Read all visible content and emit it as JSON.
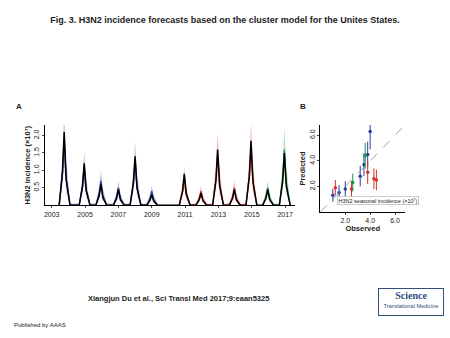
{
  "title": "Fig. 3. H3N2 incidence forecasts based on the cluster model for the Unites States.",
  "citation": "Xiangjun Du et al., Sci Transl Med 2017;9:eaan5325",
  "publisher": "Published by AAAS",
  "logo": {
    "line1": "Science",
    "line2": "Translational Medicine"
  },
  "chart_data": [
    {
      "panel": "A",
      "type": "line",
      "y_label": "H3N2 incidence (×10⁷)",
      "grid": false,
      "xlim": [
        2002.6,
        2017.6
      ],
      "xticks": [
        2003,
        2005,
        2007,
        2009,
        2011,
        2013,
        2015,
        2017
      ],
      "ylim": [
        0,
        2.3
      ],
      "yticks": [
        0.5,
        {
          "value": 1,
          "label": "1.0"
        },
        1.5,
        {
          "value": 2,
          "label": "2.0"
        }
      ],
      "series": [
        {
          "color": "#000000",
          "x": [
            2003.45,
            2003.65,
            2003.75,
            2003.87,
            2004.1,
            2004.65,
            2004.85,
            2004.95,
            2005.07,
            2005.3,
            2005.65,
            2005.85,
            2005.95,
            2006.07,
            2006.3,
            2006.7,
            2006.9,
            2007.0,
            2007.12,
            2007.35,
            2007.7,
            2007.9,
            2008.0,
            2008.12,
            2008.35,
            2008.7,
            2008.9,
            2009.0,
            2009.12,
            2009.35,
            2010.65,
            2010.85,
            2010.95,
            2011.07,
            2011.3,
            2011.65,
            2011.85,
            2011.95,
            2012.07,
            2012.3,
            2012.65,
            2012.85,
            2012.95,
            2013.07,
            2013.3,
            2013.65,
            2013.85,
            2013.95,
            2014.07,
            2014.3,
            2014.65,
            2014.85,
            2014.95,
            2015.07,
            2015.3,
            2015.65,
            2015.85,
            2015.95,
            2016.07,
            2016.3,
            2016.65,
            2016.85,
            2016.95,
            2017.07,
            2017.3
          ],
          "values": [
            0,
            0.95,
            2.1,
            0.74,
            0,
            0,
            0.54,
            1.2,
            0.42,
            0,
            0,
            0.27,
            0.6,
            0.21,
            0,
            0,
            0.2,
            0.45,
            0.16,
            0,
            0,
            0.63,
            1.4,
            0.49,
            0,
            0,
            0.14,
            0.3,
            0.11,
            0,
            0,
            0.41,
            0.9,
            0.32,
            0,
            0,
            0.16,
            0.35,
            0.12,
            0,
            0,
            0.72,
            1.6,
            0.56,
            0,
            0,
            0.2,
            0.45,
            0.16,
            0,
            0,
            0.83,
            1.85,
            0.65,
            0,
            0,
            0.2,
            0.45,
            0.16,
            0,
            0,
            0.68,
            1.5,
            0.53,
            0
          ]
        },
        {
          "color": "#2b3f9e",
          "x": [
            2003.45,
            2003.65,
            2003.75,
            2003.87,
            2004.1,
            2004.65,
            2004.85,
            2004.95,
            2005.07,
            2005.3,
            2005.65,
            2005.85,
            2005.95,
            2006.07,
            2006.3,
            2006.7,
            2006.9,
            2007.0,
            2007.12,
            2007.35,
            2007.7,
            2007.9,
            2008.0,
            2008.12,
            2008.35,
            2008.7,
            2008.9,
            2009.0,
            2009.12,
            2009.35
          ],
          "values": [
            0,
            0.95,
            1.9,
            0.76,
            0,
            0,
            0.55,
            1.1,
            0.44,
            0,
            0,
            0.35,
            0.7,
            0.28,
            0,
            0,
            0.25,
            0.5,
            0.2,
            0,
            0,
            0.65,
            1.3,
            0.52,
            0,
            0,
            0.2,
            0.4,
            0.16,
            0
          ],
          "upper": [
            0.05,
            1.52,
            2.66,
            1.33,
            0.05,
            0.05,
            0.88,
            1.54,
            0.77,
            0.05,
            0.05,
            0.56,
            0.98,
            0.49,
            0.05,
            0.05,
            0.4,
            0.7,
            0.35,
            0.05,
            0.05,
            1.04,
            1.82,
            0.91,
            0.05,
            0.05,
            0.32,
            0.56,
            0.28,
            0.05
          ],
          "lower": [
            0,
            0.57,
            1.14,
            0.38,
            0,
            0,
            0.33,
            0.66,
            0.22,
            0,
            0,
            0.21,
            0.42,
            0.14,
            0,
            0,
            0.15,
            0.3,
            0.1,
            0,
            0,
            0.39,
            0.78,
            0.26,
            0,
            0,
            0.12,
            0.24,
            0.08,
            0
          ]
        },
        {
          "color": "#d7302b",
          "x": [
            2010.65,
            2010.85,
            2010.95,
            2011.07,
            2011.3,
            2011.65,
            2011.85,
            2011.95,
            2012.07,
            2012.3,
            2012.65,
            2012.85,
            2012.95,
            2013.07,
            2013.3,
            2013.65,
            2013.85,
            2013.95,
            2014.07,
            2014.3,
            2014.65,
            2014.85,
            2014.95,
            2015.07,
            2015.3
          ],
          "values": [
            0,
            0.4,
            0.8,
            0.32,
            0,
            0,
            0.2,
            0.4,
            0.16,
            0,
            0,
            0.75,
            1.5,
            0.6,
            0,
            0,
            0.25,
            0.5,
            0.2,
            0,
            0,
            0.85,
            1.7,
            0.68,
            0
          ],
          "upper": [
            0.05,
            0.64,
            1.12,
            0.56,
            0.05,
            0.05,
            0.32,
            0.56,
            0.28,
            0.05,
            0.05,
            1.2,
            2.1,
            1.05,
            0.05,
            0.05,
            0.4,
            0.7,
            0.35,
            0.05,
            0.05,
            1.36,
            2.38,
            1.19,
            0.05
          ],
          "lower": [
            0,
            0.24,
            0.48,
            0.16,
            0,
            0,
            0.12,
            0.24,
            0.08,
            0,
            0,
            0.45,
            0.9,
            0.3,
            0,
            0,
            0.15,
            0.3,
            0.1,
            0,
            0,
            0.51,
            1.02,
            0.34,
            0
          ]
        },
        {
          "color": "#1a9641",
          "x": [
            2015.65,
            2015.85,
            2015.95,
            2016.07,
            2016.3,
            2016.65,
            2016.85,
            2016.95,
            2017.07,
            2017.3
          ],
          "values": [
            0,
            0.25,
            0.5,
            0.2,
            0,
            0,
            0.8,
            1.6,
            0.64,
            0
          ],
          "upper": [
            0.05,
            0.4,
            0.7,
            0.35,
            0.05,
            0.05,
            1.28,
            2.24,
            1.12,
            0.05
          ],
          "lower": [
            0,
            0.15,
            0.3,
            0.1,
            0,
            0,
            0.48,
            0.96,
            0.32,
            0
          ]
        }
      ]
    },
    {
      "panel": "B",
      "type": "scatter",
      "x_label": "Observed",
      "y_label": "Predicted",
      "grid": false,
      "annotation": "H3N2 seasonal incidence (×10⁷)",
      "xlim": [
        0,
        6.8
      ],
      "xticks": [
        {
          "value": 2,
          "label": "2.0"
        },
        {
          "value": 4,
          "label": "4.0"
        },
        {
          "value": 6,
          "label": "6.0"
        }
      ],
      "ylim": [
        0,
        6.8
      ],
      "yticks": [
        {
          "value": 2,
          "label": "2.0"
        },
        {
          "value": 4,
          "label": "4.0"
        },
        {
          "value": 6,
          "label": "6.0"
        }
      ],
      "series": [
        {
          "color": "#2b3f9e",
          "x": [
            1.0,
            1.5,
            2.0,
            3.2,
            3.5,
            3.8,
            4.0
          ],
          "values": [
            1.3,
            1.5,
            1.8,
            2.8,
            3.7,
            4.5,
            6.3
          ],
          "error": [
            0.5,
            0.6,
            0.6,
            0.8,
            0.9,
            1.0,
            1.4
          ]
        },
        {
          "color": "#d7302b",
          "x": [
            1.2,
            2.5,
            3.8,
            4.3,
            4.5
          ],
          "values": [
            1.9,
            1.8,
            3.1,
            2.6,
            2.5
          ],
          "error": [
            0.6,
            0.6,
            0.9,
            0.8,
            0.8
          ]
        },
        {
          "color": "#1a9641",
          "x": [
            2.6,
            3.6
          ],
          "values": [
            2.3,
            4.4
          ],
          "error": [
            0.7,
            1.0
          ]
        },
        {
          "type": "line",
          "line_style": "dashed",
          "color": "#888888",
          "x": [
            0,
            6.8
          ],
          "values": [
            0,
            6.8
          ]
        }
      ]
    }
  ]
}
